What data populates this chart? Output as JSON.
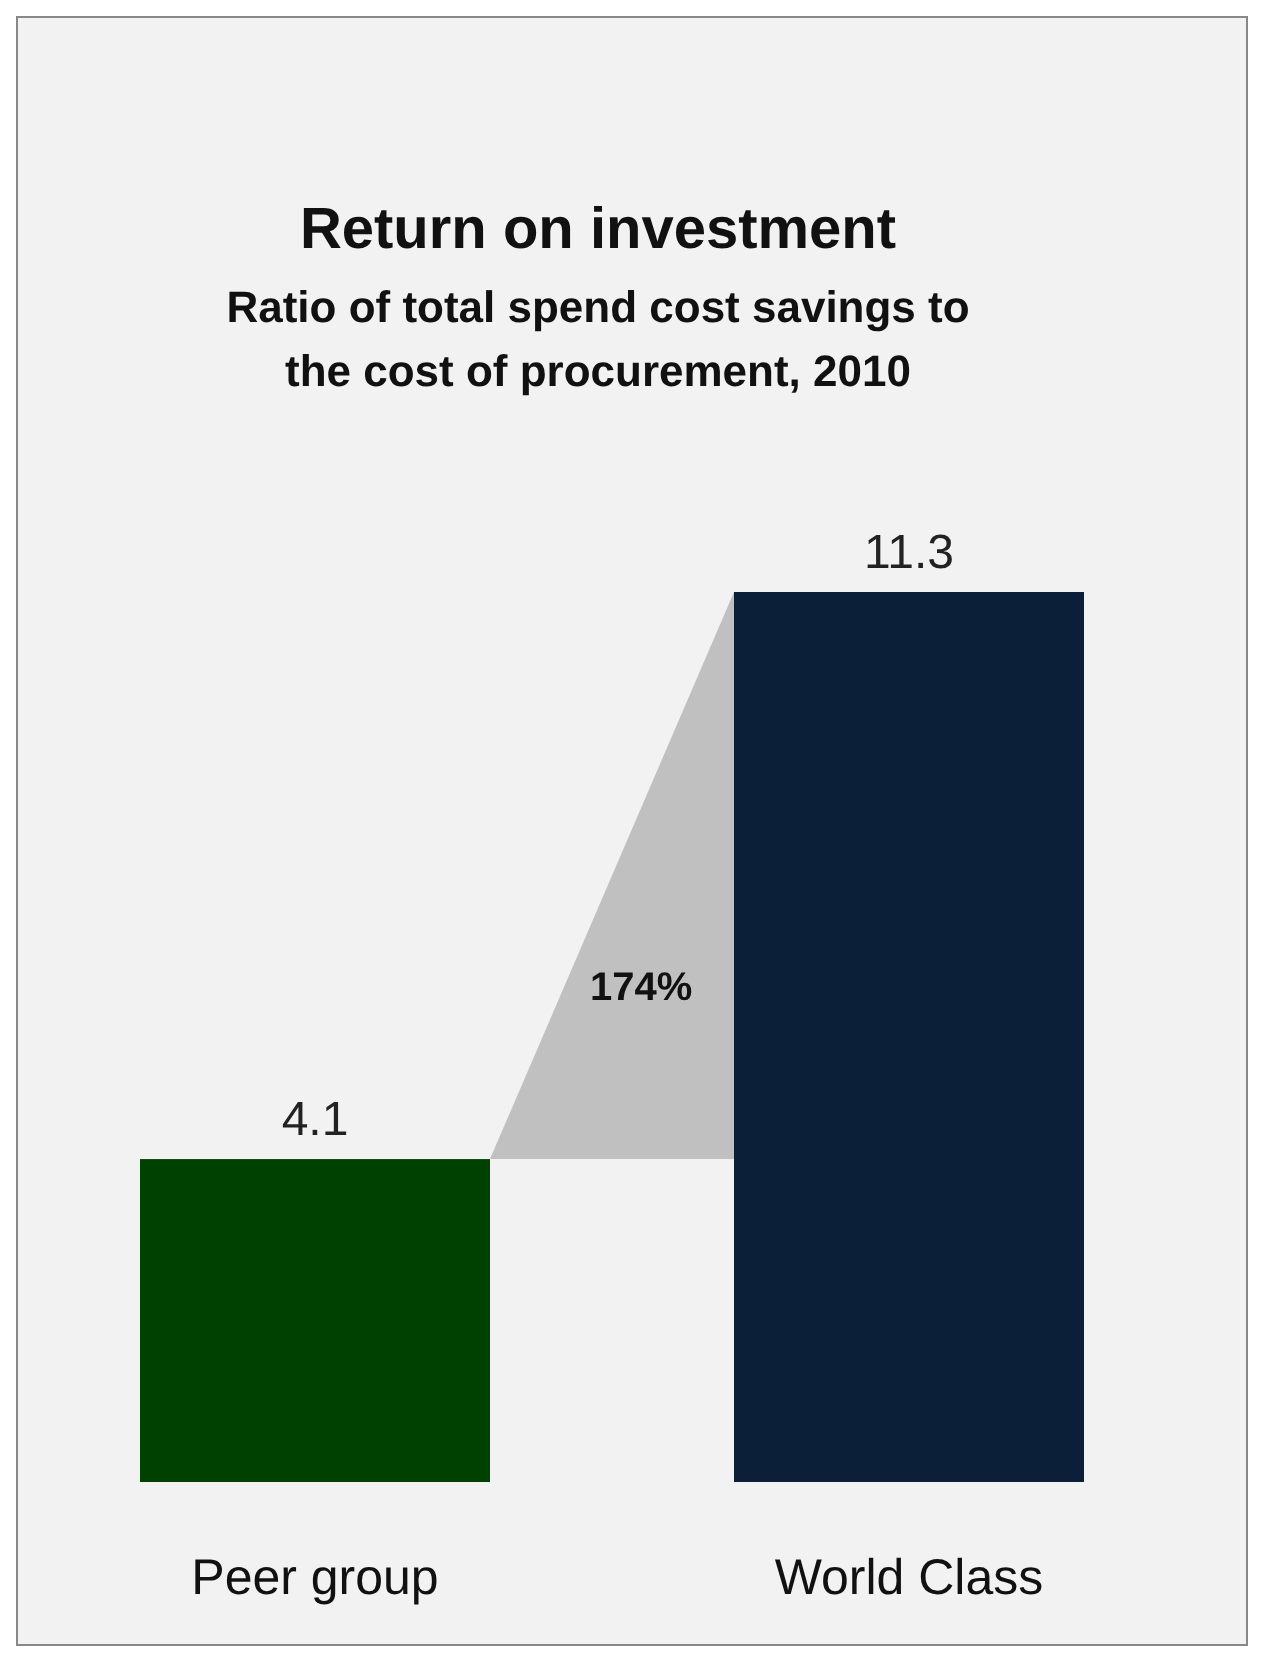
{
  "chart_data": {
    "type": "bar",
    "title": "Return on investment",
    "subtitle": "Ratio of total spend cost savings to the cost of procurement, 2010",
    "categories": [
      "Peer group",
      "World Class"
    ],
    "values": [
      4.1,
      11.3
    ],
    "colors": [
      "#004000",
      "#0b1f38"
    ],
    "data_labels": true,
    "annotations": [
      "174%"
    ]
  }
}
